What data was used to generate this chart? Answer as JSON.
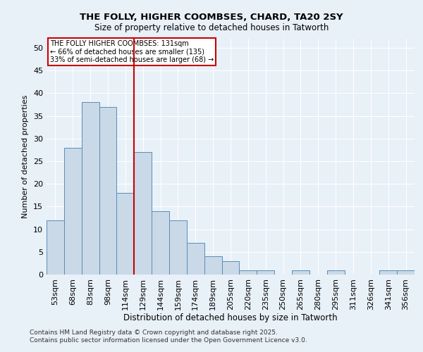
{
  "title1": "THE FOLLY, HIGHER COOMBSES, CHARD, TA20 2SY",
  "title2": "Size of property relative to detached houses in Tatworth",
  "xlabel": "Distribution of detached houses by size in Tatworth",
  "ylabel": "Number of detached properties",
  "categories": [
    "53sqm",
    "68sqm",
    "83sqm",
    "98sqm",
    "114sqm",
    "129sqm",
    "144sqm",
    "159sqm",
    "174sqm",
    "189sqm",
    "205sqm",
    "220sqm",
    "235sqm",
    "250sqm",
    "265sqm",
    "280sqm",
    "295sqm",
    "311sqm",
    "326sqm",
    "341sqm",
    "356sqm"
  ],
  "values": [
    12,
    28,
    38,
    37,
    18,
    27,
    14,
    12,
    7,
    4,
    3,
    1,
    1,
    0,
    1,
    0,
    1,
    0,
    0,
    1,
    1
  ],
  "bar_color": "#c9d9e8",
  "bar_edge_color": "#5a8db5",
  "red_line_index": 5,
  "annotation_title": "THE FOLLY HIGHER COOMBSES: 131sqm",
  "annotation_line1": "← 66% of detached houses are smaller (135)",
  "annotation_line2": "33% of semi-detached houses are larger (68) →",
  "annotation_box_color": "#ffffff",
  "annotation_box_edge": "#cc0000",
  "red_line_color": "#cc0000",
  "ylim": [
    0,
    52
  ],
  "background_color": "#e8f0f8",
  "grid_color": "#ffffff",
  "footer1": "Contains HM Land Registry data © Crown copyright and database right 2025.",
  "footer2": "Contains public sector information licensed under the Open Government Licence v3.0."
}
